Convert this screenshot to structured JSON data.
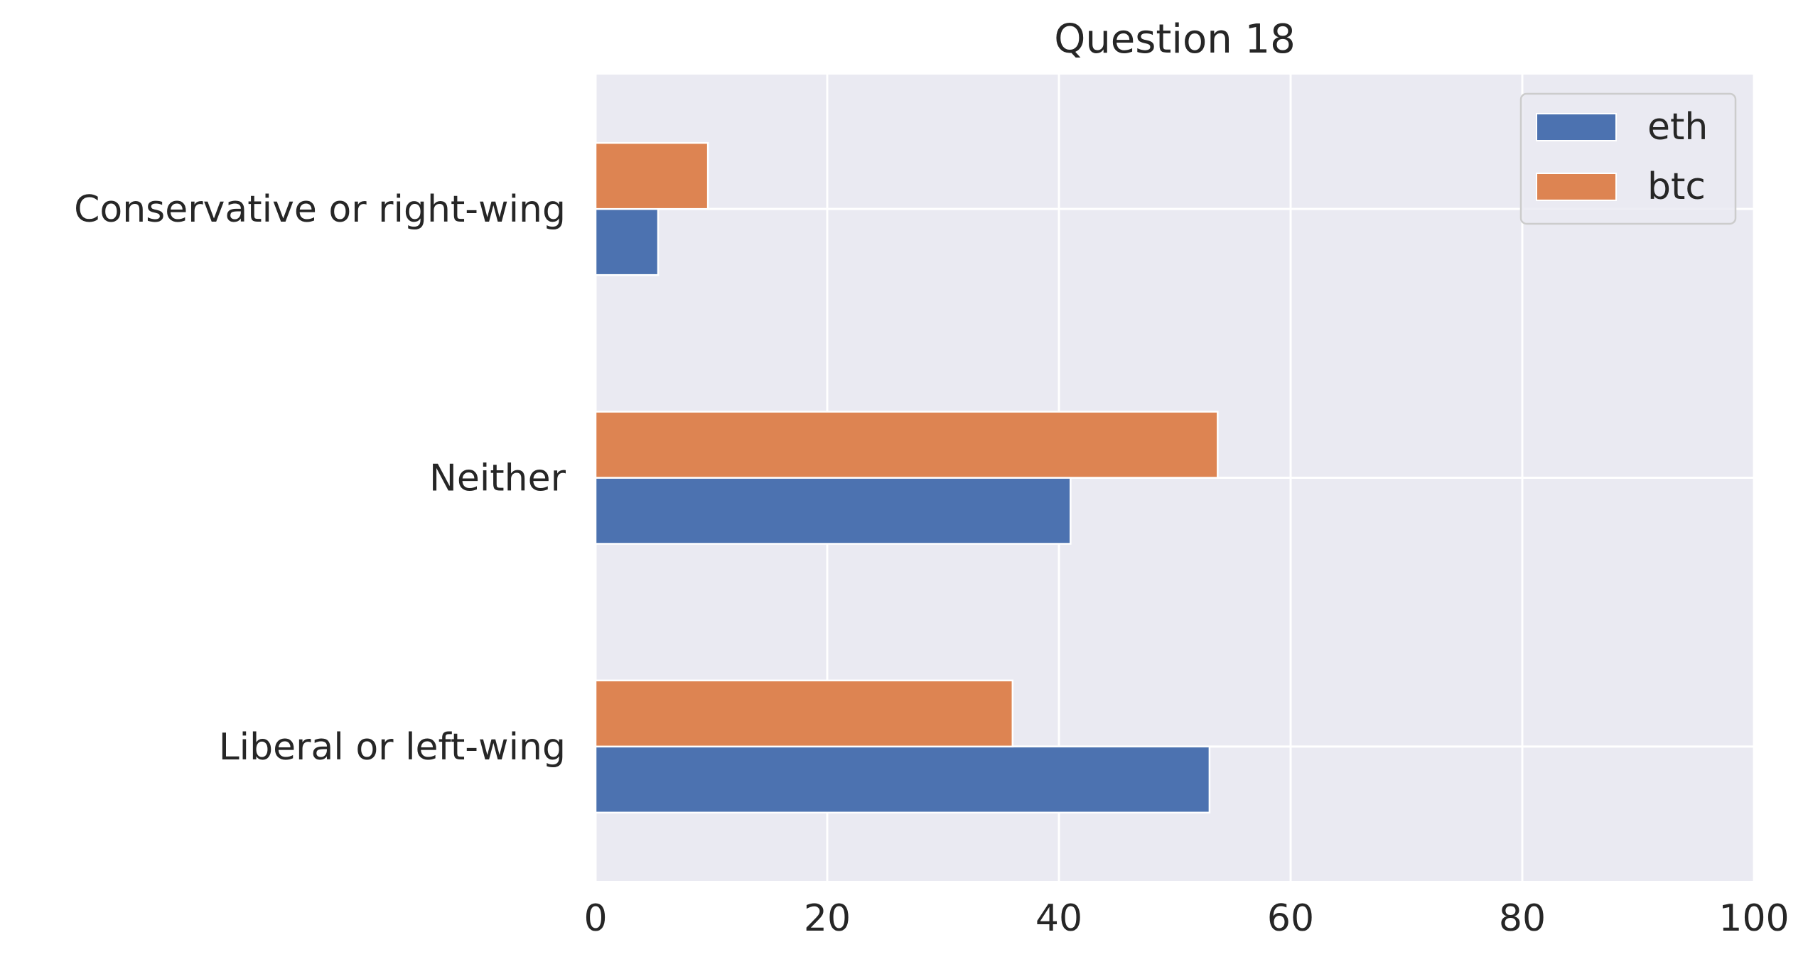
{
  "chart_data": {
    "type": "bar",
    "orientation": "horizontal",
    "title": "Question 18",
    "xlabel": "",
    "ylabel": "",
    "xlim": [
      0,
      100
    ],
    "xticks": [
      "0",
      "20",
      "40",
      "60",
      "80",
      "100"
    ],
    "categories": [
      "Conservative or right-wing",
      "Neither",
      "Liberal or left-wing"
    ],
    "series": [
      {
        "name": "eth",
        "color": "#4c72b0",
        "values": [
          5.4,
          41,
          53
        ]
      },
      {
        "name": "btc",
        "color": "#dd8452",
        "values": [
          9.7,
          53.7,
          36
        ]
      }
    ],
    "grid": true,
    "background": "#eaeaf2",
    "legend": {
      "position": "top-right"
    }
  }
}
